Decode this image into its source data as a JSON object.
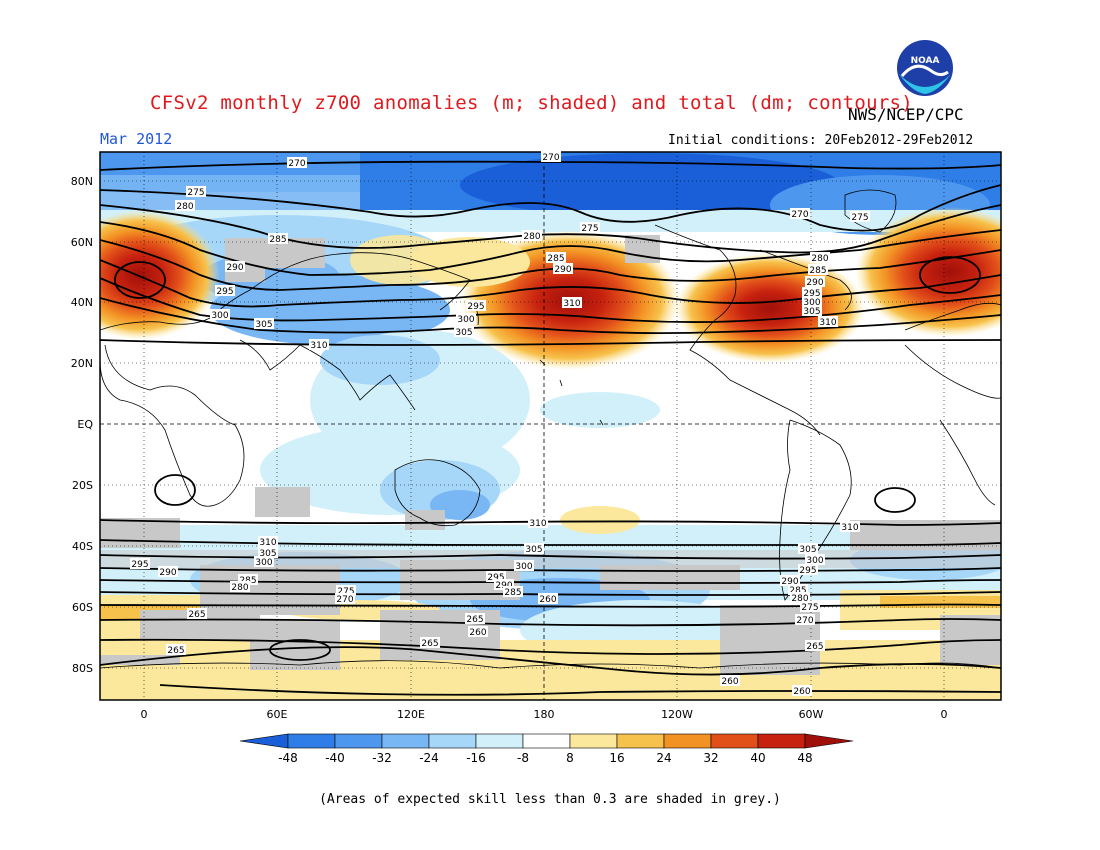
{
  "header": {
    "title": "CFSv2 monthly z700 anomalies (m; shaded) and total (dm; contours)",
    "agency": "NWS/NCEP/CPC",
    "month": "Mar 2012",
    "initial_conditions": "Initial conditions: 20Feb2012-29Feb2012",
    "logo_text": "NOAA"
  },
  "map": {
    "lon_ticks": [
      "0",
      "60E",
      "120E",
      "180",
      "120W",
      "60W",
      "0"
    ],
    "lat_ticks": [
      "80N",
      "60N",
      "40N",
      "20N",
      "EQ",
      "20S",
      "40S",
      "60S",
      "80S"
    ],
    "contour_labels": [
      "270",
      "275",
      "280",
      "285",
      "290",
      "295",
      "300",
      "305",
      "310",
      "265",
      "260"
    ]
  },
  "colorbar": {
    "labels": [
      "-48",
      "-40",
      "-32",
      "-24",
      "-16",
      "-8",
      "8",
      "16",
      "24",
      "32",
      "40",
      "48"
    ],
    "colors": [
      "#1a5fd8",
      "#2f7de6",
      "#4d97ee",
      "#79b6f4",
      "#a6d6f8",
      "#d2f0fa",
      "#ffffff",
      "#fbe89c",
      "#f7c24c",
      "#f39224",
      "#e2501a",
      "#c7220f",
      "#a0100a"
    ]
  },
  "footnote": "(Areas of expected skill less than 0.3 are shaded in grey.)"
}
